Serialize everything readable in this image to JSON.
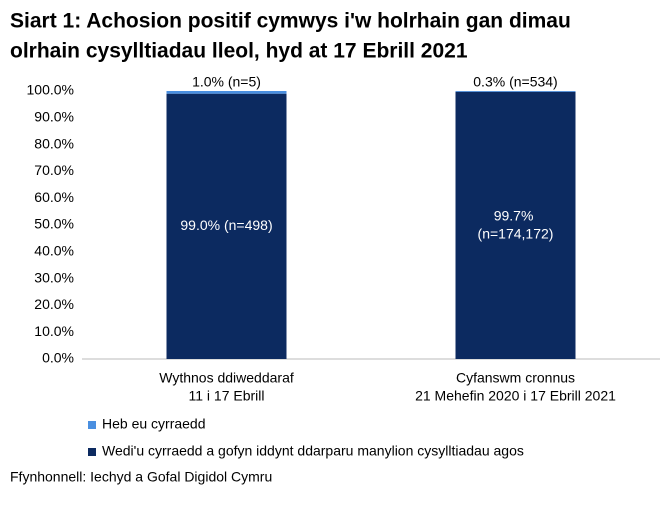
{
  "chart_data": {
    "type": "stacked_bar",
    "title": [
      "Siart 1: Achosion positif cymwys i'w holrhain gan dimau",
      "olrhain cysylltiadau lleol, hyd at 17 Ebrill 2021"
    ],
    "categories": [
      [
        "Wythnos ddiweddaraf",
        "11 i 17 Ebrill"
      ],
      [
        "Cyfanswm cronnus",
        "21 Mehefin 2020 i 17 Ebrill 2021"
      ]
    ],
    "series": [
      {
        "name": "Heb eu cyrraedd",
        "color": "#4a8fe0",
        "values": [
          1.0,
          0.3
        ],
        "value_labels": [
          "1.0% (n=5)",
          "0.3% (n=534)"
        ]
      },
      {
        "name": "Wedi'u cyrraedd a gofyn iddynt ddarparu manylion cysylltiadau agos",
        "color": "#0c2a60",
        "values": [
          99.0,
          99.7
        ],
        "value_labels": [
          "99.0% (n=498)",
          "99.7% (n=174,172)"
        ]
      }
    ],
    "ylim": [
      0,
      100
    ],
    "yticks": [
      {
        "value": 0,
        "label": "0.0%"
      },
      {
        "value": 10,
        "label": "10.0%"
      },
      {
        "value": 20,
        "label": "20.0%"
      },
      {
        "value": 30,
        "label": "30.0%"
      },
      {
        "value": 40,
        "label": "40.0%"
      },
      {
        "value": 50,
        "label": "50.0%"
      },
      {
        "value": 60,
        "label": "60.0%"
      },
      {
        "value": 70,
        "label": "70.0%"
      },
      {
        "value": 80,
        "label": "80.0%"
      },
      {
        "value": 90,
        "label": "90.0%"
      },
      {
        "value": 100,
        "label": "100.0%"
      }
    ],
    "grid": false,
    "source": "Ffynhonnell: Iechyd a Gofal Digidol Cymru"
  }
}
